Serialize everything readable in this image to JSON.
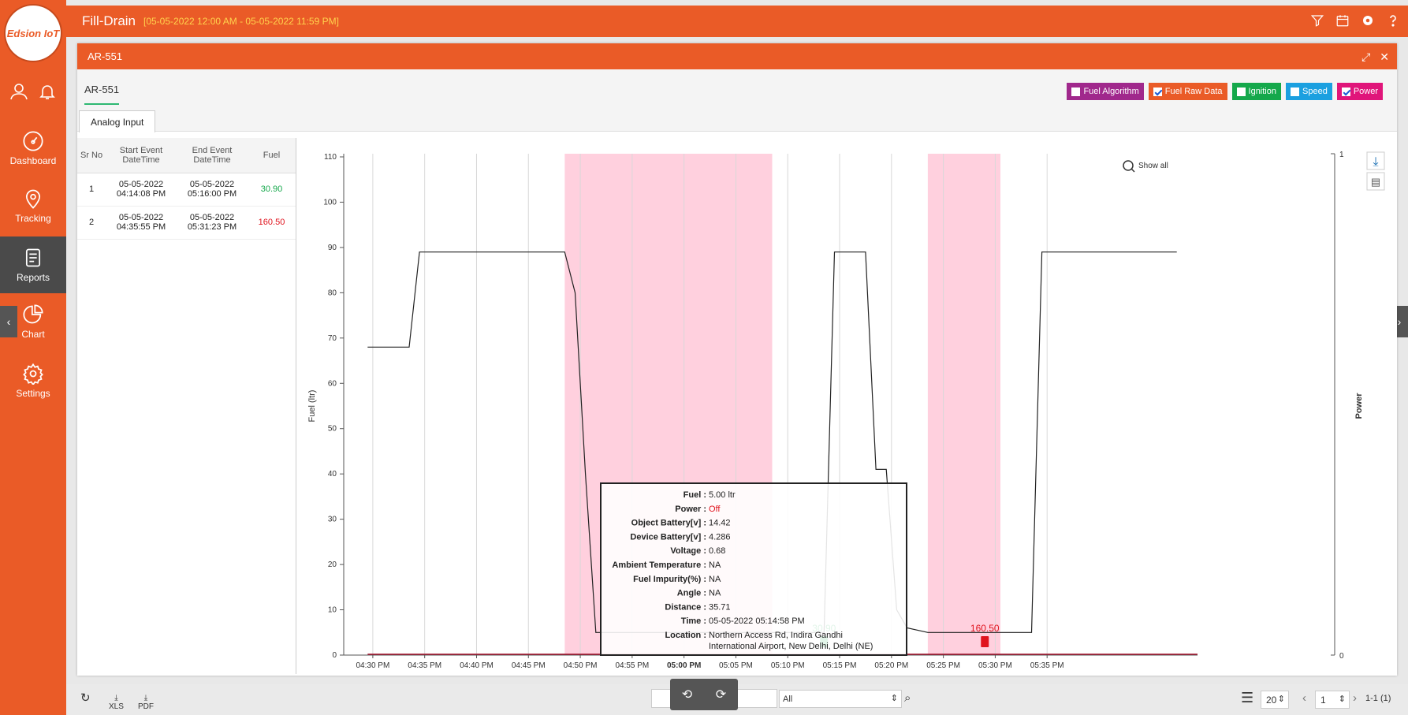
{
  "app": {
    "logo_text": "Edsion IoT",
    "page_title": "Fill-Drain",
    "date_range": "[05-05-2022 12:00 AM - 05-05-2022 11:59 PM]"
  },
  "sidebar": {
    "items": [
      {
        "label": "Dashboard",
        "icon": "dashboard-icon"
      },
      {
        "label": "Tracking",
        "icon": "location-pin-icon"
      },
      {
        "label": "Reports",
        "icon": "report-icon"
      },
      {
        "label": "Chart",
        "icon": "pie-chart-icon"
      },
      {
        "label": "Settings",
        "icon": "gear-icon"
      }
    ]
  },
  "panel": {
    "title": "AR-551",
    "vehicle_tab": "AR-551",
    "sub_tab": "Analog Input"
  },
  "legend": [
    {
      "label": "Fuel Algorithm",
      "color": "#a0288c",
      "checked": false
    },
    {
      "label": "Fuel Raw Data",
      "color": "#ea5b27",
      "checked": true
    },
    {
      "label": "Ignition",
      "color": "#15a84b",
      "checked": false
    },
    {
      "label": "Speed",
      "color": "#1ba0e0",
      "checked": false
    },
    {
      "label": "Power",
      "color": "#e0157a",
      "checked": true
    }
  ],
  "table": {
    "headers": [
      "Sr No",
      "Start Event DateTime",
      "End Event DateTime",
      "Fuel"
    ],
    "rows": [
      {
        "sr": "1",
        "start": "05-05-2022 04:14:08 PM",
        "end": "05-05-2022 05:16:00 PM",
        "fuel": "30.90",
        "fuel_color": "#15a84b"
      },
      {
        "sr": "2",
        "start": "05-05-2022 04:35:55 PM",
        "end": "05-05-2022 05:31:23 PM",
        "fuel": "160.50",
        "fuel_color": "#e0141e"
      }
    ]
  },
  "chart_data": {
    "type": "line",
    "xlabel": "Time",
    "ylabel": "Fuel (ltr)",
    "y2label": "Power",
    "ylim": [
      0,
      110
    ],
    "y2lim": [
      0,
      1
    ],
    "yticks": [
      0,
      10,
      20,
      30,
      40,
      50,
      60,
      70,
      80,
      90,
      100,
      110
    ],
    "y2ticks": [
      "0",
      "1"
    ],
    "xticks": [
      "04:30 PM",
      "04:35 PM",
      "04:40 PM",
      "04:45 PM",
      "04:50 PM",
      "04:55 PM",
      "05:00 PM",
      "05:05 PM",
      "05:10 PM",
      "05:15 PM",
      "05:20 PM",
      "05:25 PM",
      "05:30 PM",
      "05:35 PM"
    ],
    "show_all_label": "Show all",
    "series": [
      {
        "name": "Fuel Raw Data",
        "color": "#222222",
        "x_min": [
          28,
          32,
          33,
          47,
          48,
          49,
          50,
          51,
          72,
          73,
          76,
          77,
          78,
          79,
          80,
          82,
          92,
          93,
          106
        ],
        "y": [
          68,
          68,
          89,
          89,
          80,
          40,
          5,
          5,
          5,
          89,
          89,
          41,
          41,
          10,
          6,
          5,
          5,
          89,
          89
        ]
      }
    ],
    "bands": [
      {
        "label": "Power Off",
        "from_min": 47,
        "to_min": 67,
        "color": "#ffc8d8"
      },
      {
        "label": "Power Off",
        "from_min": 82,
        "to_min": 89,
        "color": "#ffc8d8"
      }
    ],
    "markers": [
      {
        "x_min": 72,
        "label": "30.90",
        "color": "#15a84b"
      },
      {
        "x_min": 87.5,
        "label": "160.50",
        "color": "#e0141e"
      }
    ],
    "tooltip": [
      {
        "k": "Fuel",
        "v": "5.00 ltr"
      },
      {
        "k": "Power",
        "v": "Off"
      },
      {
        "k": "Object Battery[v]",
        "v": "14.42"
      },
      {
        "k": "Device Battery[v]",
        "v": "4.286"
      },
      {
        "k": "Voltage",
        "v": "0.68"
      },
      {
        "k": "Ambient Temperature",
        "v": "NA"
      },
      {
        "k": "Fuel Impurity(%)",
        "v": "NA"
      },
      {
        "k": "Angle",
        "v": "NA"
      },
      {
        "k": "Distance",
        "v": "35.71"
      },
      {
        "k": "Time",
        "v": "05-05-2022 05:14:58 PM"
      },
      {
        "k": "Location",
        "v": "Northern Access Rd, Indira Gandhi International Airport, New Delhi, Delhi (NE)"
      }
    ]
  },
  "footer": {
    "xls": "XLS",
    "pdf": "PDF",
    "filter_value": "All",
    "page_size": "20",
    "page_number": "1",
    "page_info": "1-1 (1)"
  }
}
